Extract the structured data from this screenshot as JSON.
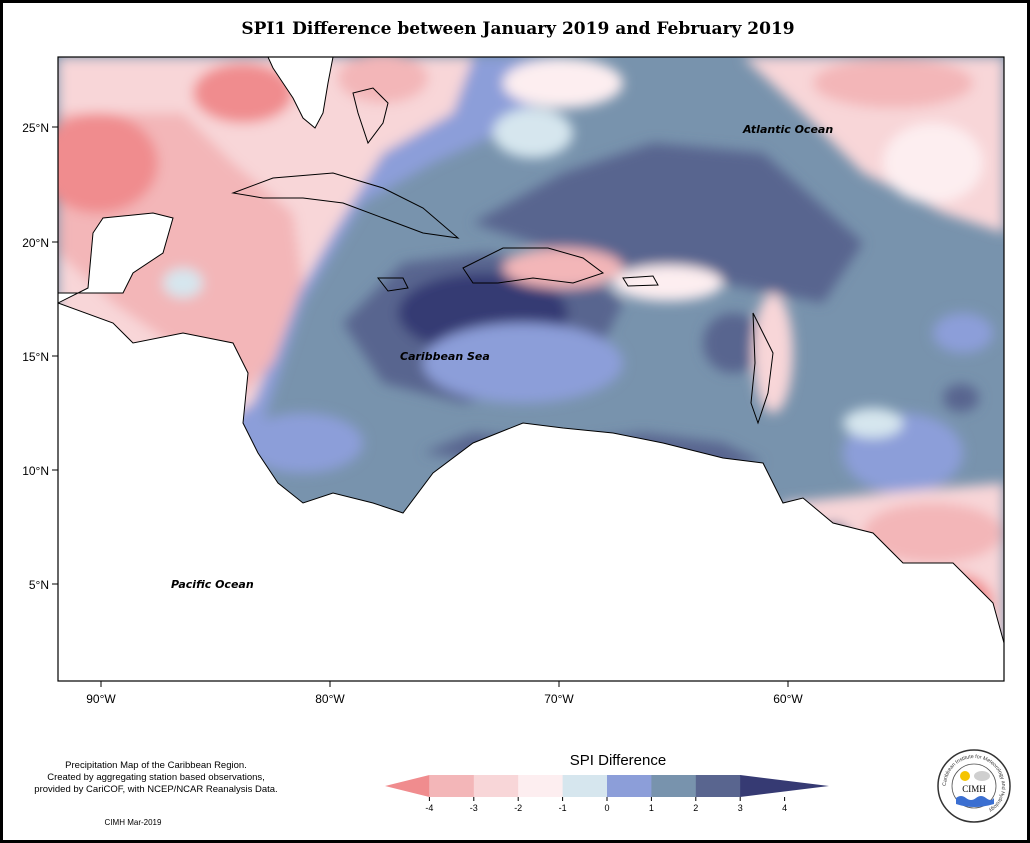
{
  "title": "SPI1 Difference between January 2019 and February 2019",
  "map": {
    "labels": {
      "atlantic": "Atlantic Ocean",
      "caribbean": "Caribbean Sea",
      "pacific": "Pacific Ocean"
    },
    "lat_ticks": [
      "25°N",
      "20°N",
      "15°N",
      "10°N",
      "5°N"
    ],
    "lon_ticks": [
      "90°W",
      "80°W",
      "70°W",
      "60°W"
    ]
  },
  "legend": {
    "title": "SPI Difference",
    "ticks": [
      "-4",
      "-3",
      "-2",
      "-1",
      "0",
      "1",
      "2",
      "3",
      "4"
    ],
    "colors": [
      "#f08c8e",
      "#f3b6b8",
      "#f8d6d8",
      "#fdeef0",
      "#d6e6ee",
      "#8c9ed9",
      "#7893ad",
      "#59658f",
      "#363a73"
    ]
  },
  "footer": {
    "info_lines": [
      "Precipitation Map of the Caribbean Region.",
      "Created by aggregating station based observations,",
      "provided by CariCOF, with NCEP/NCAR Reanalysis Data."
    ],
    "credit": "CIMH Mar-2019"
  },
  "logo": {
    "ring_text": "Caribbean Institute for Meteorology and Hydrology",
    "name": "CIMH"
  }
}
